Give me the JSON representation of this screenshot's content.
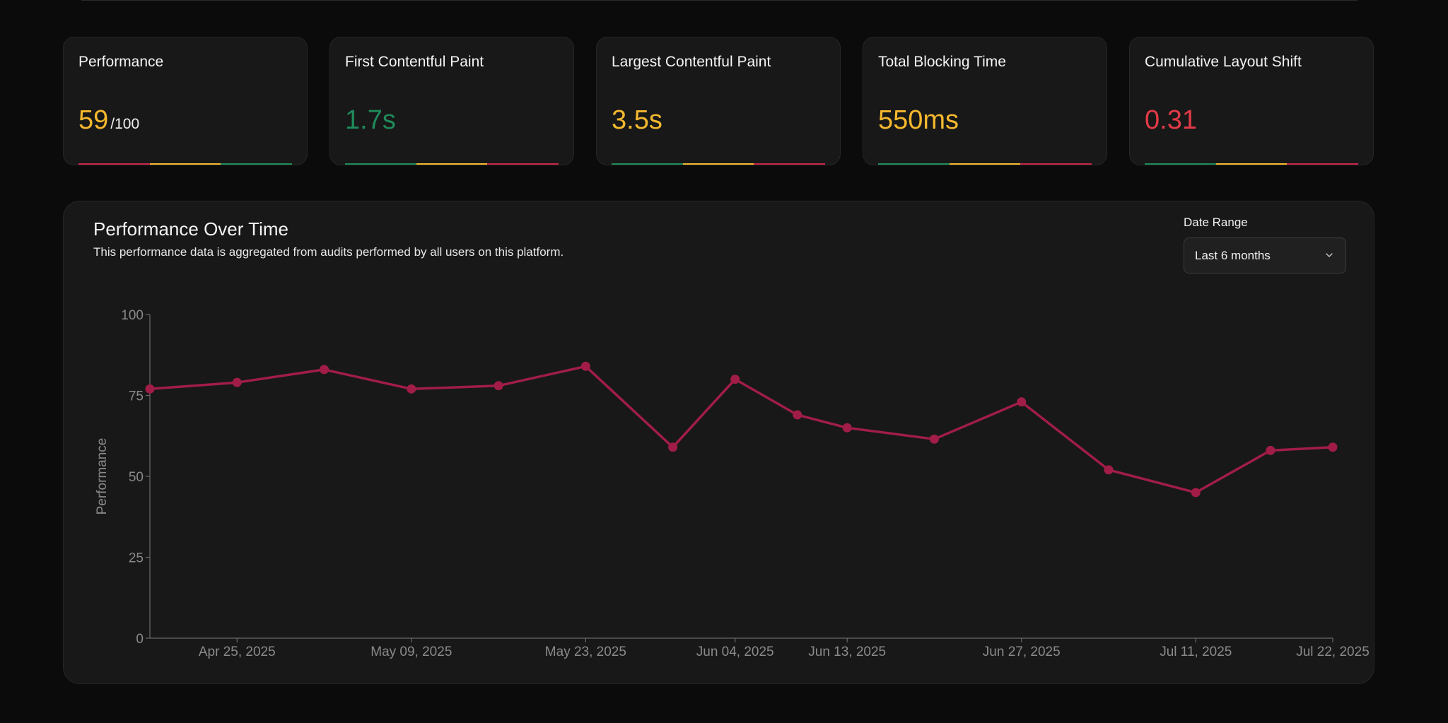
{
  "metrics": [
    {
      "title": "Performance",
      "value": "59",
      "suffix": "/100",
      "color": "#f5b82e",
      "scale": [
        "#c8264a",
        "#f5b82e",
        "#1f8a5a"
      ]
    },
    {
      "title": "First Contentful Paint",
      "value": "1.7s",
      "suffix": "",
      "color": "#1f8a5a",
      "scale": [
        "#1f8a5a",
        "#f5b82e",
        "#c8264a"
      ]
    },
    {
      "title": "Largest Contentful Paint",
      "value": "3.5s",
      "suffix": "",
      "color": "#f5b82e",
      "scale": [
        "#1f8a5a",
        "#f5b82e",
        "#c8264a"
      ]
    },
    {
      "title": "Total Blocking Time",
      "value": "550ms",
      "suffix": "",
      "color": "#f5b82e",
      "scale": [
        "#1f8a5a",
        "#f5b82e",
        "#c8264a"
      ]
    },
    {
      "title": "Cumulative Layout Shift",
      "value": "0.31",
      "suffix": "",
      "color": "#e33a48",
      "scale": [
        "#1f8a5a",
        "#f5b82e",
        "#c8264a"
      ]
    }
  ],
  "panel": {
    "title": "Performance Over Time",
    "subtitle": "This performance data is aggregated from audits performed by all users on this platform.",
    "date_range_label": "Date Range",
    "date_range_value": "Last 6 months"
  },
  "chart_data": {
    "type": "line",
    "title": "Performance Over Time",
    "ylabel": "Performance",
    "xlabel": "",
    "ylim": [
      0,
      100
    ],
    "yticks": [
      0,
      25,
      50,
      75,
      100
    ],
    "xlim": [
      "2025-04-18",
      "2025-07-22"
    ],
    "x_tick_labels": [
      "Apr 25, 2025",
      "May 09, 2025",
      "May 23, 2025",
      "Jun 04, 2025",
      "Jun 13, 2025",
      "Jun 27, 2025",
      "Jul 11, 2025",
      "Jul 22, 2025"
    ],
    "x_tick_dates": [
      "2025-04-25",
      "2025-05-09",
      "2025-05-23",
      "2025-06-04",
      "2025-06-13",
      "2025-06-27",
      "2025-07-11",
      "2025-07-22"
    ],
    "series": [
      {
        "color": "#a11d48",
        "points": [
          {
            "x": "2025-04-18",
            "y": 77
          },
          {
            "x": "2025-04-25",
            "y": 79
          },
          {
            "x": "2025-05-02",
            "y": 83
          },
          {
            "x": "2025-05-09",
            "y": 77
          },
          {
            "x": "2025-05-16",
            "y": 78
          },
          {
            "x": "2025-05-23",
            "y": 84
          },
          {
            "x": "2025-05-30",
            "y": 59
          },
          {
            "x": "2025-06-04",
            "y": 80
          },
          {
            "x": "2025-06-09",
            "y": 69
          },
          {
            "x": "2025-06-13",
            "y": 65
          },
          {
            "x": "2025-06-20",
            "y": 61.5
          },
          {
            "x": "2025-06-27",
            "y": 73
          },
          {
            "x": "2025-07-04",
            "y": 52
          },
          {
            "x": "2025-07-11",
            "y": 45
          },
          {
            "x": "2025-07-17",
            "y": 58
          },
          {
            "x": "2025-07-22",
            "y": 59
          }
        ]
      }
    ],
    "grid": false,
    "legend": "none"
  }
}
